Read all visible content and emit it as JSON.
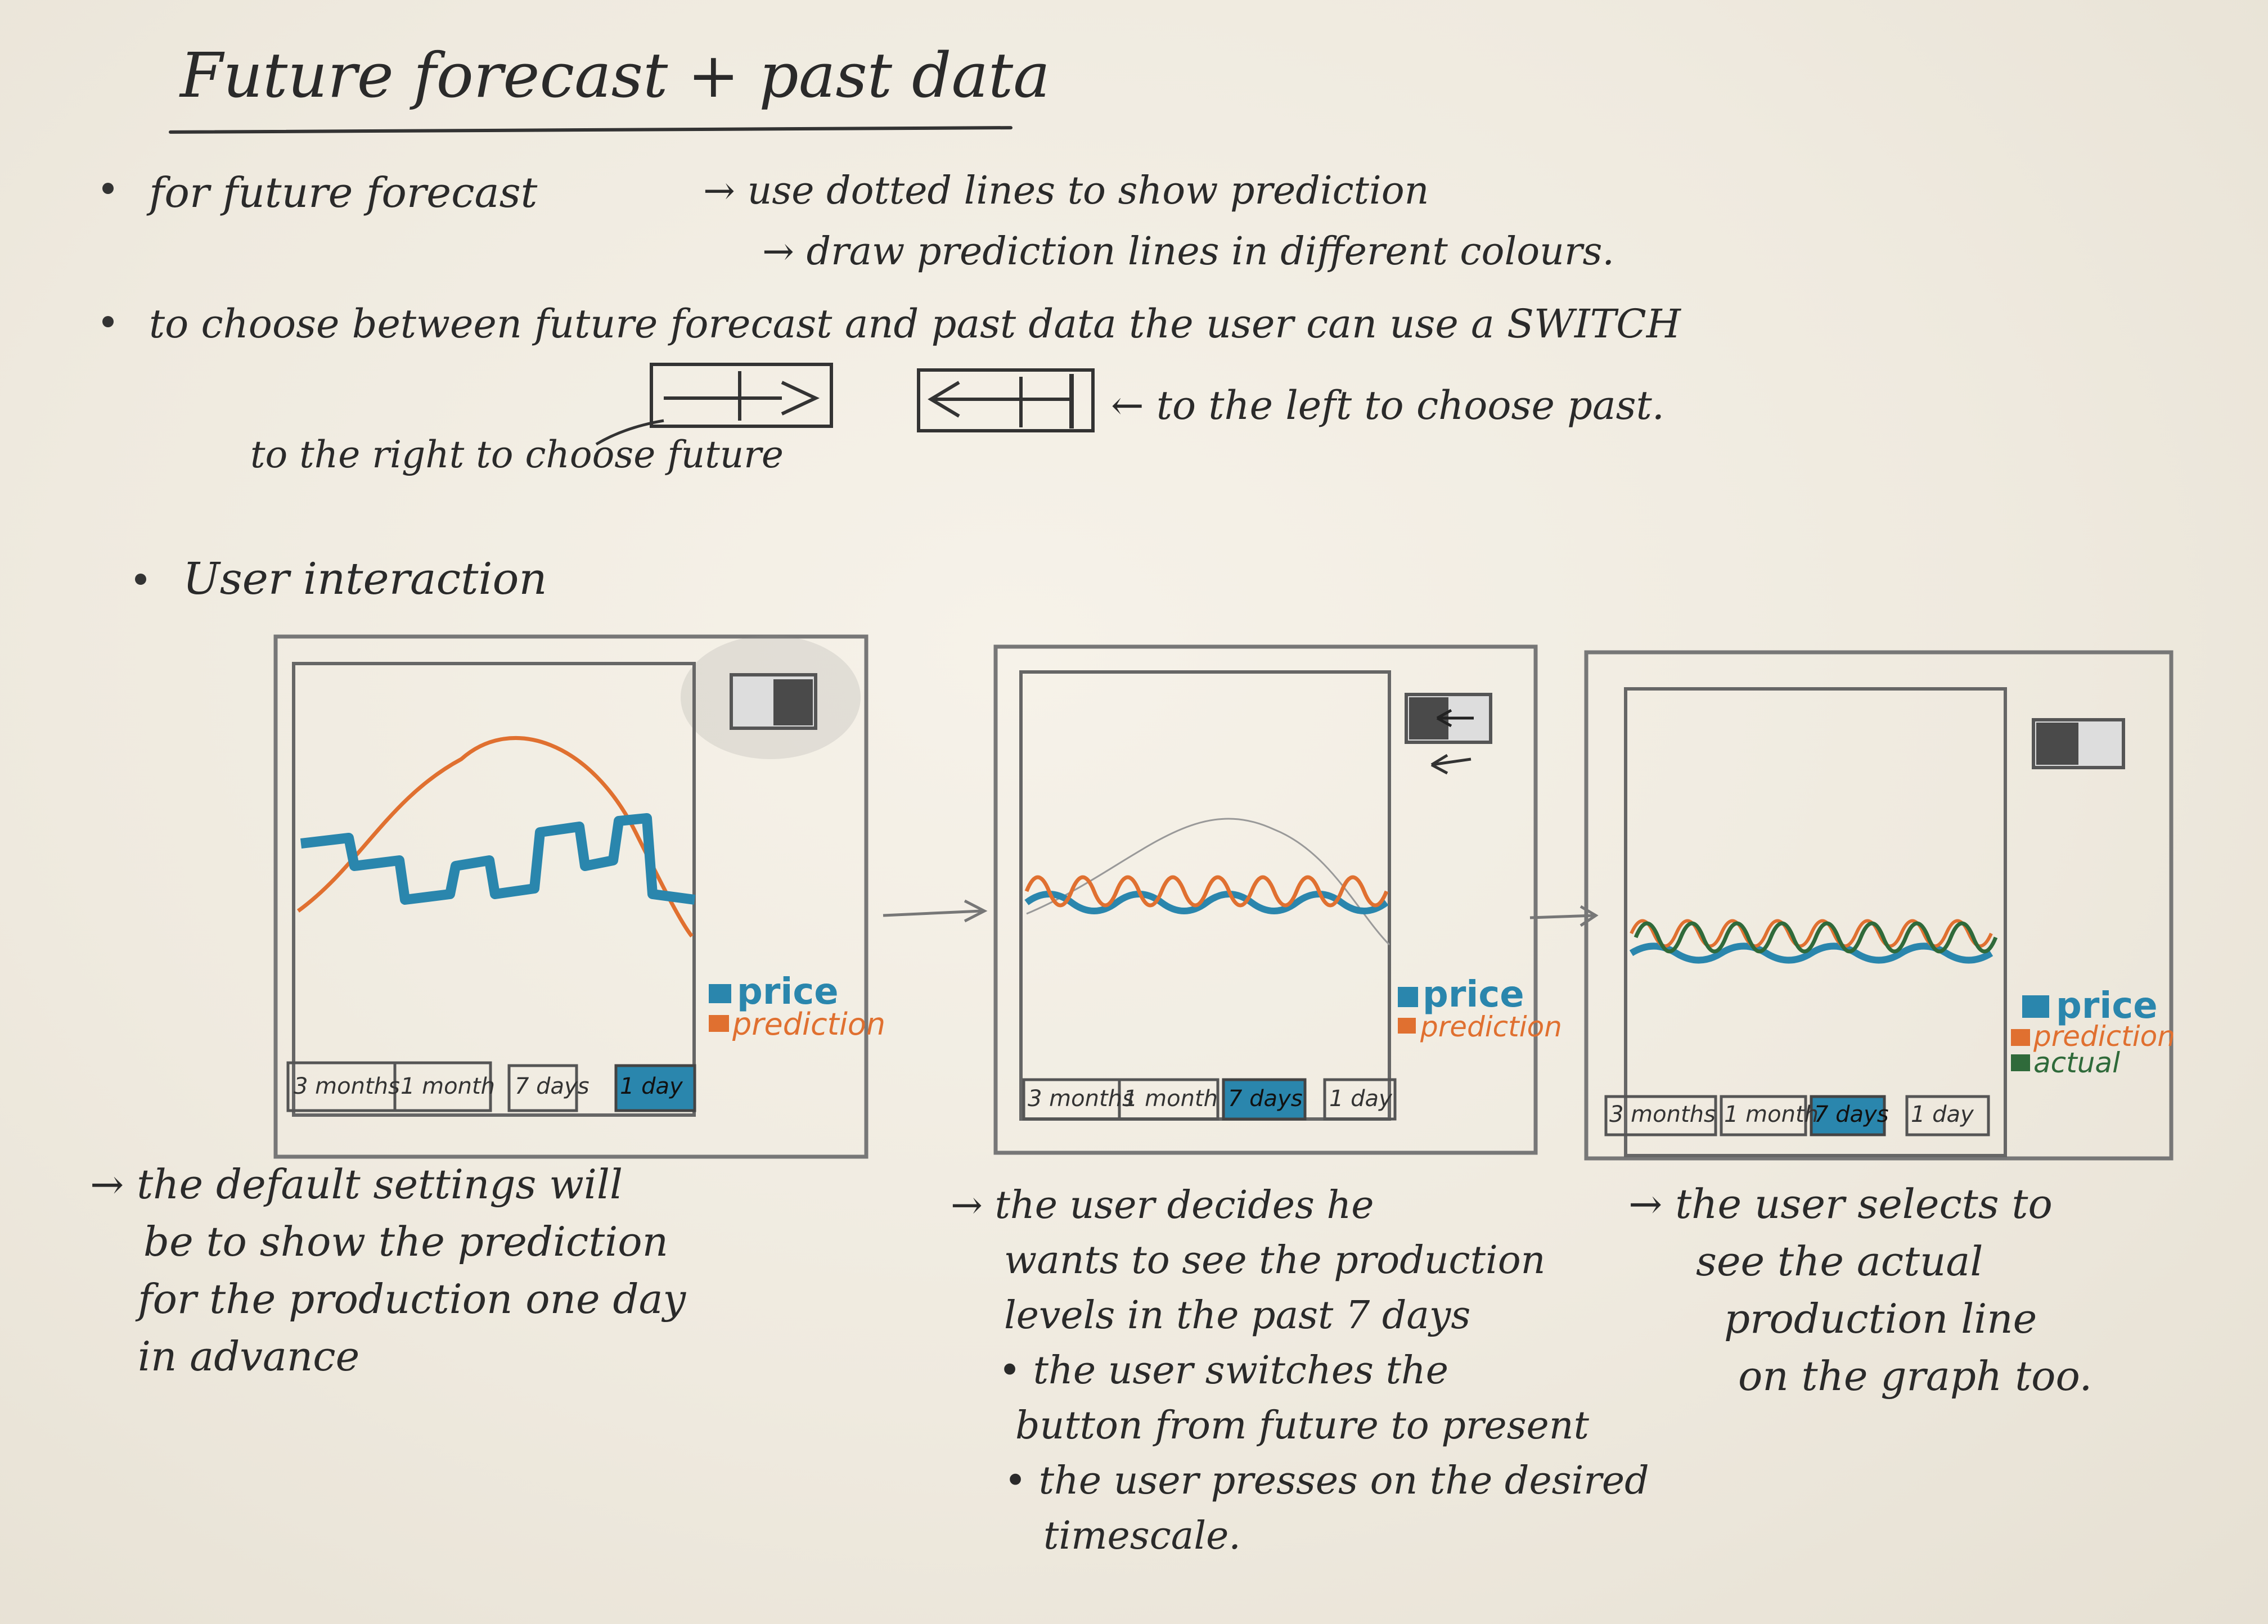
{
  "title": "Future forecast + past data",
  "notes": {
    "b1_lead": "for future forecast",
    "b1_a": "→ use dotted lines to show prediction",
    "b1_b": "→ draw prediction lines in different colours.",
    "b2": "to choose between future forecast and past data the user can use a SWITCH",
    "switch_left_note": "← to the left to choose past.",
    "switch_right_note": "to the right to choose future",
    "b3": "User interaction"
  },
  "panels": [
    {
      "legend": [
        "price",
        "prediction"
      ],
      "tabs": [
        "3 months",
        "1 month",
        "7 days",
        "1 day"
      ],
      "caption": [
        "→ the default settings will",
        "be to show the prediction",
        "for the production one day",
        "in advance"
      ]
    },
    {
      "legend": [
        "price",
        "prediction"
      ],
      "tabs": [
        "3 months",
        "1 month",
        "7 days",
        "1 day"
      ],
      "caption": [
        "→ the user decides he",
        "wants to see the production",
        "levels in the past 7 days",
        "• the user switches the",
        "button from future to present",
        "• the user presses on the desired",
        "timescale."
      ]
    },
    {
      "legend": [
        "price",
        "prediction",
        "actual"
      ],
      "tabs": [
        "3 months",
        "1 month",
        "7 days",
        "1 day"
      ],
      "caption": [
        "→ the user selects to",
        "see the actual",
        "production line",
        "on the graph too."
      ]
    }
  ],
  "colors": {
    "price": "#2a86ad",
    "prediction": "#e07030",
    "actual": "#2f6a3a",
    "pencil": "#6a6a6a",
    "ink": "#2a2a2a"
  }
}
